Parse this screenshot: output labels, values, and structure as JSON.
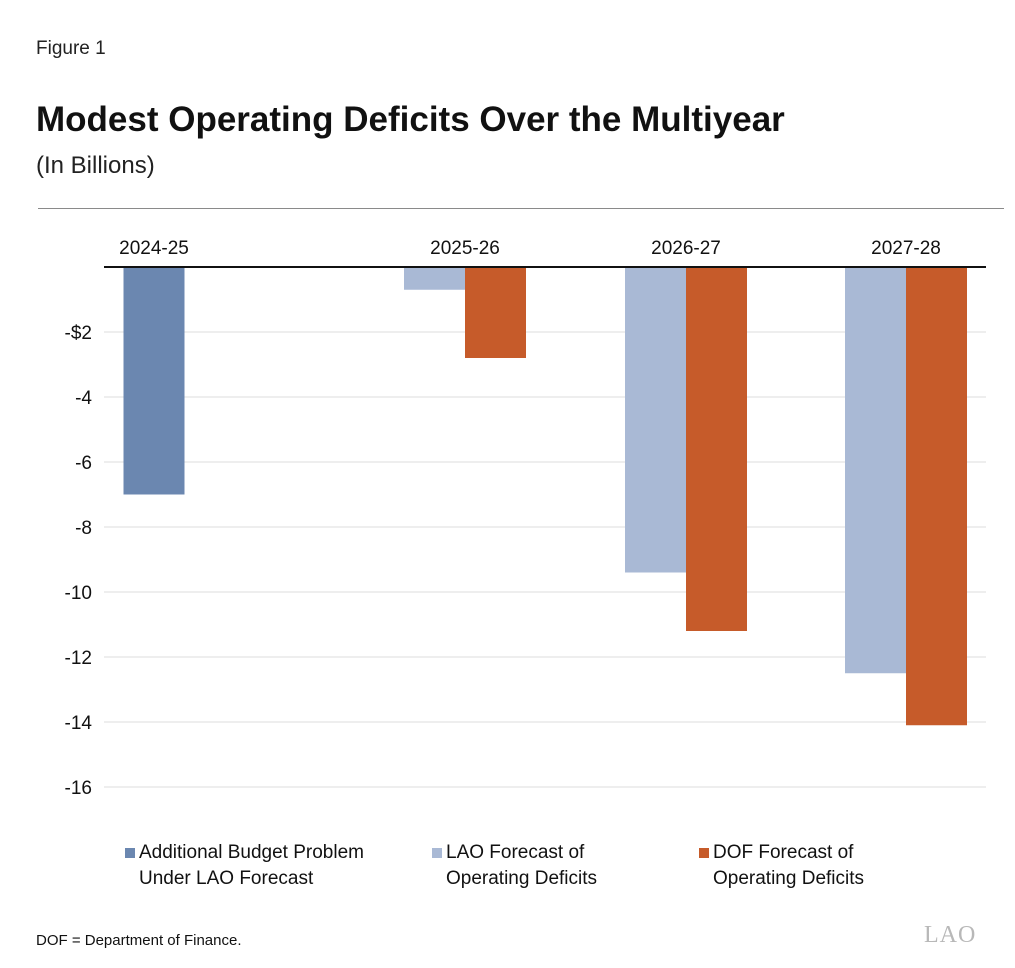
{
  "figure_label": "Figure 1",
  "chart_data": {
    "type": "bar",
    "title": "Modest Operating Deficits Over the Multiyear",
    "subtitle": "(In Billions)",
    "categories": [
      "2024-25",
      "2025-26",
      "2026-27",
      "2027-28"
    ],
    "series": [
      {
        "name": "Additional Budget Problem\nUnder LAO Forecast",
        "color": "#6b87b0",
        "values": [
          -7.0,
          null,
          null,
          null
        ]
      },
      {
        "name": "LAO Forecast of\nOperating Deficits",
        "color": "#a9b9d5",
        "values": [
          null,
          -0.7,
          -9.4,
          -12.5
        ]
      },
      {
        "name": "DOF Forecast of\nOperating Deficits",
        "color": "#c65b2a",
        "values": [
          null,
          -2.8,
          -11.2,
          -14.1
        ]
      }
    ],
    "ylim": [
      -17,
      0
    ],
    "yticks": [
      -2,
      -4,
      -6,
      -8,
      -10,
      -12,
      -14,
      -16
    ],
    "ytick_labels": [
      "-$2",
      "-4",
      "-6",
      "-8",
      "-10",
      "-12",
      "-14",
      "-16"
    ],
    "grid": true,
    "xaxis_position": "top",
    "legend_position": "bottom"
  },
  "note": "DOF = Department of Finance.",
  "logo_text": "LAO"
}
